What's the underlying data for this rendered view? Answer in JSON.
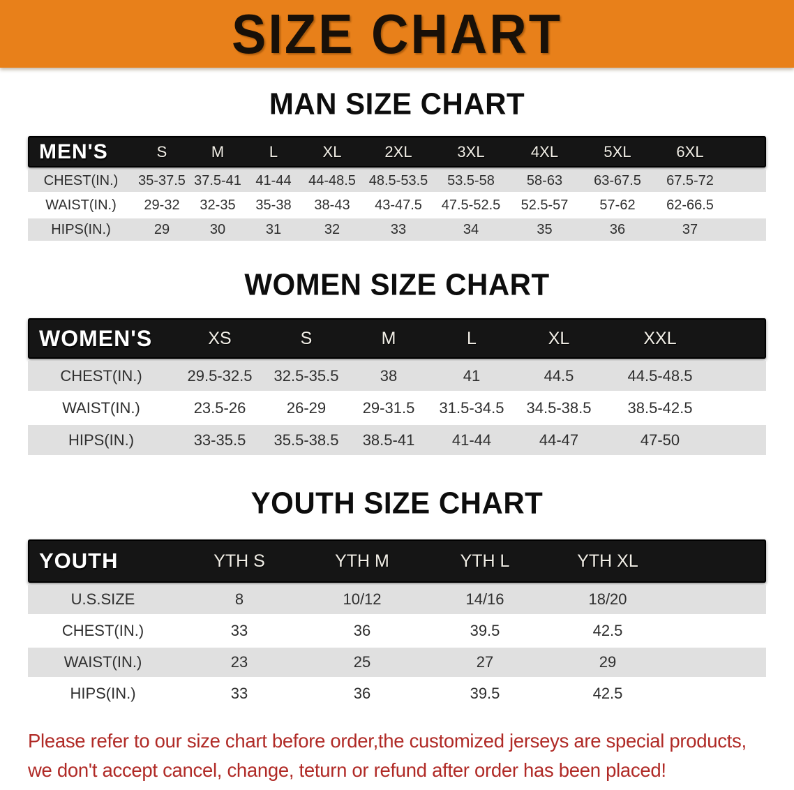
{
  "banner": {
    "title": "SIZE CHART"
  },
  "sections": [
    {
      "heading": "MAN SIZE CHART",
      "table": {
        "corner_label": "MEN'S",
        "columns": [
          "S",
          "M",
          "L",
          "XL",
          "2XL",
          "3XL",
          "4XL",
          "5XL",
          "6XL"
        ],
        "rows": [
          {
            "label": "CHEST(IN.)",
            "values": [
              "35-37.5",
              "37.5-41",
              "41-44",
              "44-48.5",
              "48.5-53.5",
              "53.5-58",
              "58-63",
              "63-67.5",
              "67.5-72"
            ]
          },
          {
            "label": "WAIST(IN.)",
            "values": [
              "29-32",
              "32-35",
              "35-38",
              "38-43",
              "43-47.5",
              "47.5-52.5",
              "52.5-57",
              "57-62",
              "62-66.5"
            ]
          },
          {
            "label": "HIPS(IN.)",
            "values": [
              "29",
              "30",
              "31",
              "32",
              "33",
              "34",
              "35",
              "36",
              "37"
            ]
          }
        ]
      }
    },
    {
      "heading": "WOMEN SIZE CHART",
      "table": {
        "corner_label": "WOMEN'S",
        "columns": [
          "XS",
          "S",
          "M",
          "L",
          "XL",
          "XXL"
        ],
        "rows": [
          {
            "label": "CHEST(IN.)",
            "values": [
              "29.5-32.5",
              "32.5-35.5",
              "38",
              "41",
              "44.5",
              "44.5-48.5"
            ]
          },
          {
            "label": "WAIST(IN.)",
            "values": [
              "23.5-26",
              "26-29",
              "29-31.5",
              "31.5-34.5",
              "34.5-38.5",
              "38.5-42.5"
            ]
          },
          {
            "label": "HIPS(IN.)",
            "values": [
              "33-35.5",
              "35.5-38.5",
              "38.5-41",
              "41-44",
              "44-47",
              "47-50"
            ]
          }
        ]
      }
    },
    {
      "heading": "YOUTH SIZE CHART",
      "table": {
        "corner_label": "YOUTH",
        "columns": [
          "YTH S",
          "YTH M",
          "YTH L",
          "YTH XL"
        ],
        "rows": [
          {
            "label": "U.S.SIZE",
            "values": [
              "8",
              "10/12",
              "14/16",
              "18/20"
            ]
          },
          {
            "label": "CHEST(IN.)",
            "values": [
              "33",
              "36",
              "39.5",
              "42.5"
            ]
          },
          {
            "label": "WAIST(IN.)",
            "values": [
              "23",
              "25",
              "27",
              "29"
            ]
          },
          {
            "label": "HIPS(IN.)",
            "values": [
              "33",
              "36",
              "39.5",
              "42.5"
            ]
          }
        ]
      }
    }
  ],
  "footer_note": {
    "line1": "Please refer to our size chart before order,the customized jerseys are special products,",
    "line2": "we don't accept cancel, change, teturn or refund after order has been placed!"
  },
  "colors": {
    "banner_bg": "#e8801a",
    "banner_text": "#181008",
    "header_bar_bg": "#151515",
    "header_bar_text": "#ffffff",
    "stripe": "#e0e0e0",
    "cell_text": "#2e2e2e",
    "note_red": "#b02a26"
  }
}
